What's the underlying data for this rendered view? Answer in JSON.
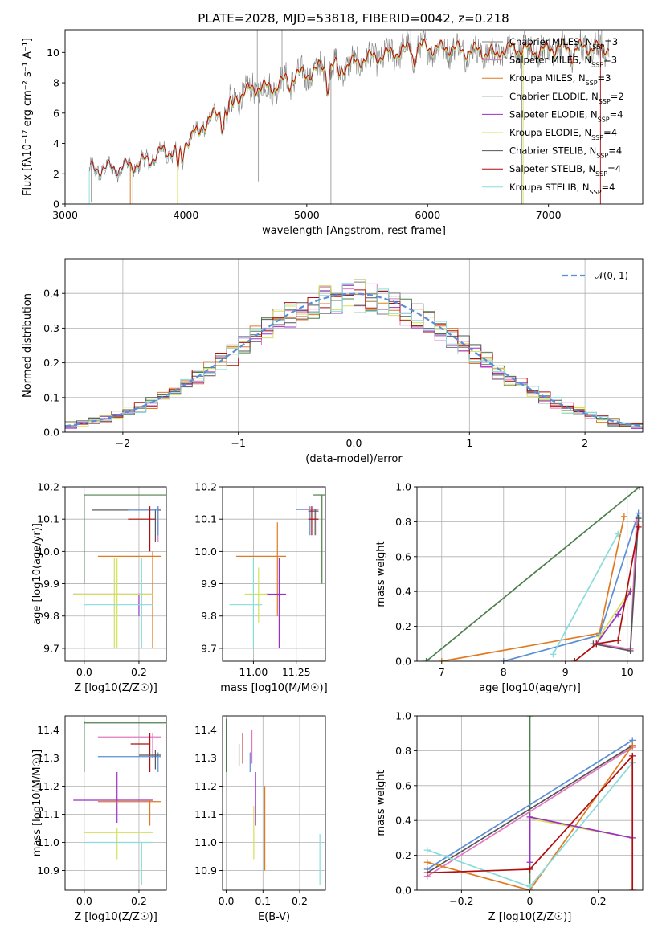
{
  "figure": {
    "title": "PLATE=2028, MJD=53818, FIBERID=0042, z=0.218"
  },
  "colors": {
    "chabrier_miles": "#7f7f7f",
    "salpeter_miles": "#e377c2",
    "kroupa_miles": "#e07a1f",
    "chabrier_elodie": "#4c7f4c",
    "salpeter_elodie": "#9b30c8",
    "kroupa_elodie": "#d4e157",
    "chabrier_stelib": "#555555",
    "salpeter_stelib": "#b00d0d",
    "kroupa_stelib": "#8adcdc",
    "normal": "#5a8fd6",
    "series_blue": "#5a8fd6"
  },
  "chart_data": [
    {
      "id": "spectrum",
      "type": "line",
      "xlabel": "wavelength [Angstrom, rest frame]",
      "ylabel": "Flux [fλ10⁻¹⁷ erg cm⁻² s⁻¹ A⁻¹]",
      "xlim": [
        3000,
        7780
      ],
      "ylim": [
        0,
        11.5
      ],
      "xticks": [
        3000,
        4000,
        5000,
        6000,
        7000
      ],
      "yticks": [
        0,
        2,
        4,
        6,
        8,
        10
      ],
      "grid": false,
      "legend_position": "top-right",
      "continuum_x": [
        3200,
        3300,
        3400,
        3500,
        3600,
        3700,
        3800,
        3900,
        4000,
        4100,
        4200,
        4300,
        4400,
        4500,
        4600,
        4700,
        4800,
        4900,
        5000,
        5100,
        5200,
        5300,
        5400,
        5500,
        5600,
        5700,
        5800,
        5900,
        6000,
        6100,
        6200,
        6300,
        6400,
        6500,
        6600,
        6700,
        6800,
        6900,
        7000,
        7100,
        7200,
        7300,
        7400,
        7500
      ],
      "continuum_y": [
        2.2,
        2.3,
        2.3,
        2.4,
        2.6,
        2.9,
        3.4,
        3.5,
        4.1,
        4.9,
        5.6,
        6.1,
        6.9,
        7.4,
        7.7,
        7.6,
        8.0,
        8.5,
        8.5,
        8.9,
        9.1,
        9.0,
        9.3,
        9.6,
        9.7,
        9.9,
        10.1,
        10.3,
        10.3,
        10.2,
        10.3,
        10.0,
        10.1,
        9.9,
        10.1,
        10.2,
        10.2,
        10.0,
        10.2,
        10.3,
        10.2,
        10.3,
        10.2,
        10.3
      ],
      "series": [
        {
          "name": "Chabrier MILES, N_SSP=3"
        },
        {
          "name": "Salpeter MILES, N_SSP=3"
        },
        {
          "name": "Kroupa MILES, N_SSP=3"
        },
        {
          "name": "Chabrier ELODIE, N_SSP=2"
        },
        {
          "name": "Salpeter ELODIE, N_SSP=4"
        },
        {
          "name": "Kroupa ELODIE, N_SSP=4"
        },
        {
          "name": "Chabrier STELIB, N_SSP=4"
        },
        {
          "name": "Salpeter STELIB, N_SSP=4"
        },
        {
          "name": "Kroupa STELIB, N_SSP=4"
        }
      ]
    },
    {
      "id": "residuals",
      "type": "line",
      "xlabel": "(data-model)/error",
      "ylabel": "Normed distribution",
      "xlim": [
        -2.5,
        2.5
      ],
      "ylim": [
        0,
        0.5
      ],
      "xticks": [
        -2,
        -1,
        0,
        1,
        2
      ],
      "yticks": [
        0.0,
        0.1,
        0.2,
        0.3,
        0.4
      ],
      "grid": true,
      "legend_position": "top-right",
      "legend": "𝒩(0, 1)",
      "bin_edges_start": -2.5,
      "bin_width": 0.1
    },
    {
      "id": "age_vs_Z",
      "type": "scatter",
      "xlabel": "Z [log10(Z/Z☉)]",
      "ylabel": "age  [log10(age/yr)]",
      "xlim": [
        -0.07,
        0.3
      ],
      "ylim": [
        9.66,
        10.2
      ],
      "xticks": [
        0.0,
        0.2
      ],
      "yticks": [
        9.7,
        9.8,
        9.9,
        10.0,
        10.1,
        10.2
      ],
      "grid": true
    },
    {
      "id": "age_vs_mass",
      "type": "scatter",
      "xlabel": "mass [log10(M/M☉)]",
      "ylabel": "",
      "xlim": [
        10.82,
        11.42
      ],
      "ylim": [
        9.66,
        10.2
      ],
      "xticks": [
        11.0,
        11.25
      ],
      "yticks": [
        9.7,
        9.8,
        9.9,
        10.0,
        10.1,
        10.2
      ],
      "grid": true
    },
    {
      "id": "mass_weight_vs_age",
      "type": "line",
      "xlabel": "age  [log10(age/yr)]",
      "ylabel": "mass weight",
      "xlim": [
        6.6,
        10.25
      ],
      "ylim": [
        0,
        1.0
      ],
      "xticks": [
        7,
        8,
        9,
        10
      ],
      "yticks": [
        0.0,
        0.2,
        0.4,
        0.6,
        0.8,
        1.0
      ],
      "grid": true
    },
    {
      "id": "mass_vs_Z",
      "type": "scatter",
      "xlabel": "Z [log10(Z/Z☉)]",
      "ylabel": "mass [log10(M/M☉)]",
      "xlim": [
        -0.07,
        0.3
      ],
      "ylim": [
        10.83,
        11.45
      ],
      "xticks": [
        0.0,
        0.2
      ],
      "yticks": [
        10.9,
        11.0,
        11.1,
        11.2,
        11.3,
        11.4
      ],
      "grid": true
    },
    {
      "id": "mass_vs_EBV",
      "type": "scatter",
      "xlabel": "E(B-V)",
      "ylabel": "",
      "xlim": [
        -0.01,
        0.27
      ],
      "ylim": [
        10.83,
        11.45
      ],
      "xticks": [
        0.0,
        0.1,
        0.2
      ],
      "yticks": [
        10.9,
        11.0,
        11.1,
        11.2,
        11.3,
        11.4
      ],
      "grid": true
    },
    {
      "id": "mass_weight_vs_Z",
      "type": "line",
      "xlabel": "Z [log10(Z/Z☉)]",
      "ylabel": "mass weight",
      "xlim": [
        -0.33,
        0.33
      ],
      "ylim": [
        0,
        1.0
      ],
      "xticks": [
        -0.2,
        0.0,
        0.2
      ],
      "yticks": [
        0.0,
        0.2,
        0.4,
        0.6,
        0.8,
        1.0
      ],
      "grid": true
    }
  ]
}
